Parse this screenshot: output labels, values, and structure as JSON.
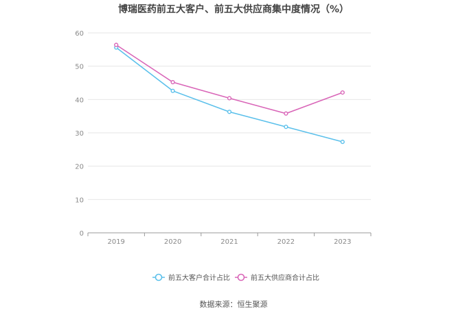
{
  "chart_data": {
    "type": "line",
    "title": "博瑞医药前五大客户、前五大供应商集中度情况（%）",
    "categories": [
      "2019",
      "2020",
      "2021",
      "2022",
      "2023"
    ],
    "series": [
      {
        "name": "前五大客户合计占比",
        "values": [
          55.6,
          42.6,
          36.3,
          31.8,
          27.3
        ]
      },
      {
        "name": "前五大供应商合计占比",
        "values": [
          56.4,
          45.2,
          40.4,
          35.8,
          42.1
        ]
      }
    ],
    "yticks": [
      "0",
      "10",
      "20",
      "30",
      "40",
      "50",
      "60"
    ],
    "ylim": [
      0,
      60
    ],
    "grid": true,
    "legend": "bottom",
    "colors": {
      "series_0": "#5bc0eb",
      "series_1": "#d966b8",
      "grid": "#e6e6e6",
      "axis": "#999999"
    }
  },
  "footer": {
    "source": "数据来源：恒生聚源"
  }
}
